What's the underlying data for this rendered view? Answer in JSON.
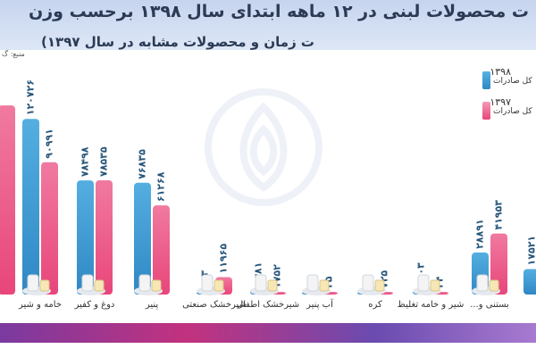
{
  "header": {
    "title": "ت محصولات لبنی در ۱۲ ماهه ابتدای سال ۱۳۹۸ برحسب وزن",
    "subtitle": "ت زمان و محصولات مشابه در سال ۱۳۹۷)",
    "source": "منبع: گ"
  },
  "colors": {
    "series_1398": "#2f88c4",
    "series_1397": "#e8467a",
    "footer_start": "#7a3aa0",
    "footer_end": "#a87ad0"
  },
  "legend": [
    {
      "year": "۱۳۹۸",
      "label": "کل صادرات"
    },
    {
      "year": "۱۳۹۷",
      "label": "کل صادرات"
    }
  ],
  "chart_data": {
    "type": "bar",
    "categories": [
      "",
      "خامه و شیر",
      "دوغ و کفیر",
      "پنیر",
      "شیرخشک صنعتی",
      "شیرخشک اطفال",
      "آب پنیر",
      "کره",
      "شیر و خامه تغلیظ",
      "بستنی و...",
      ""
    ],
    "icons": [
      "",
      "milk-carton-icon",
      "yogurt-jar-icon",
      "cheese-icon",
      "powder-bowl-icon",
      "baby-formula-icon",
      "whey-icon",
      "butter-icon",
      "cream-can-icon",
      "ice-cream-icon",
      ""
    ],
    "series": [
      {
        "name": "۱۳۹۸",
        "values": [
          null,
          120726,
          78498,
          76835,
          193,
          3381,
          0,
          60,
          3003,
          28891,
          17521
        ],
        "labels": [
          "",
          "۱۲۰۷۲۶",
          "۷۸۴۹۸",
          "۷۶۸۳۵",
          "۱۹۳",
          "۳۳۸۱",
          "۰",
          "۶۰",
          "۳۰۰۳",
          "۲۸۸۹۱",
          "۱۷۵۲۱"
        ]
      },
      {
        "name": "۱۳۹۷",
        "values": [
          130000,
          90991,
          78535,
          61268,
          11965,
          1752,
          25,
          725,
          34,
          41953,
          null
        ],
        "labels": [
          "",
          "۹۰۹۹۱",
          "۷۸۵۳۵",
          "۶۱۲۶۸",
          "۱۱۹۶۵",
          "۱۷۵۲",
          "۲۵",
          "۷۲۵",
          "۳۴",
          "۴۱۹۵۳",
          ""
        ]
      }
    ],
    "ylim": [
      0,
      135000
    ]
  }
}
